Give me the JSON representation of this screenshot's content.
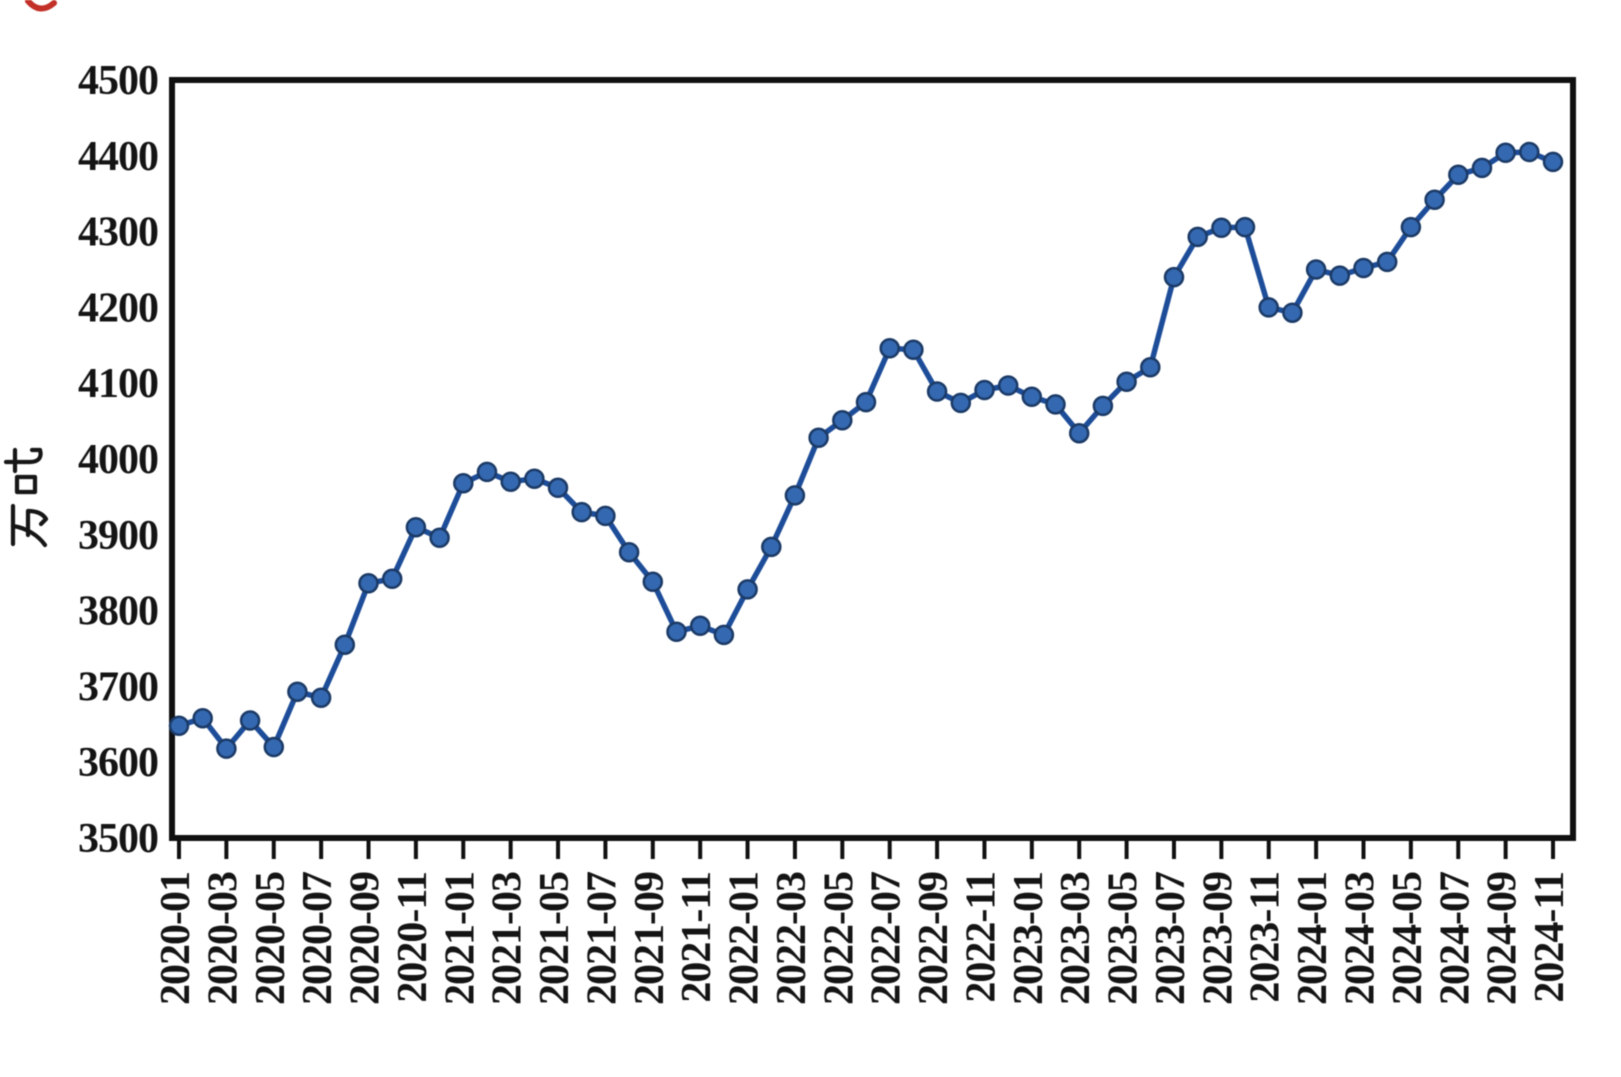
{
  "page": {
    "background": "#ffffff"
  },
  "chart_data": {
    "type": "line",
    "title": "",
    "xlabel": "",
    "ylabel": "万吨",
    "ylim": [
      3500,
      4500
    ],
    "yticks": [
      3500,
      3600,
      3700,
      3800,
      3900,
      4000,
      4100,
      4200,
      4300,
      4400,
      4500
    ],
    "grid": false,
    "legend": "none",
    "line_color": "#1d4d99",
    "marker_color": "#3468b0",
    "marker_edge_color": "#1b3a66",
    "axis_color": "#101010",
    "x": [
      "2020-01",
      "2020-02",
      "2020-03",
      "2020-04",
      "2020-05",
      "2020-06",
      "2020-07",
      "2020-08",
      "2020-09",
      "2020-10",
      "2020-11",
      "2020-12",
      "2021-01",
      "2021-02",
      "2021-03",
      "2021-04",
      "2021-05",
      "2021-06",
      "2021-07",
      "2021-08",
      "2021-09",
      "2021-10",
      "2021-11",
      "2021-12",
      "2022-01",
      "2022-02",
      "2022-03",
      "2022-04",
      "2022-05",
      "2022-06",
      "2022-07",
      "2022-08",
      "2022-09",
      "2022-10",
      "2022-11",
      "2022-12",
      "2023-01",
      "2023-02",
      "2023-03",
      "2023-04",
      "2023-05",
      "2023-06",
      "2023-07",
      "2023-08",
      "2023-09",
      "2023-10",
      "2023-11",
      "2023-12",
      "2024-01",
      "2024-02",
      "2024-03",
      "2024-04",
      "2024-05",
      "2024-06",
      "2024-07",
      "2024-08",
      "2024-09",
      "2024-10",
      "2024-11"
    ],
    "values": [
      3648,
      3658,
      3618,
      3655,
      3620,
      3693,
      3685,
      3755,
      3836,
      3842,
      3910,
      3896,
      3968,
      3983,
      3970,
      3974,
      3962,
      3930,
      3925,
      3877,
      3838,
      3772,
      3780,
      3768,
      3828,
      3884,
      3952,
      4028,
      4051,
      4075,
      4146,
      4144,
      4089,
      4074,
      4091,
      4097,
      4082,
      4072,
      4034,
      4070,
      4102,
      4121,
      4240,
      4293,
      4305,
      4306,
      4200,
      4193,
      4250,
      4242,
      4252,
      4260,
      4306,
      4342,
      4375,
      4384,
      4404,
      4405,
      4392
    ],
    "xtick_every": 2,
    "xtick_labels": [
      "2020-01",
      "2020-03",
      "2020-05",
      "2020-07",
      "2020-09",
      "2020-11",
      "2021-01",
      "2021-03",
      "2021-05",
      "2021-07",
      "2021-09",
      "2021-11",
      "2022-01",
      "2022-03",
      "2022-05",
      "2022-07",
      "2022-09",
      "2022-11",
      "2023-01",
      "2023-03",
      "2023-05",
      "2023-07",
      "2023-09",
      "2023-11",
      "2024-01",
      "2024-03",
      "2024-05",
      "2024-07",
      "2024-09",
      "2024-11"
    ]
  }
}
